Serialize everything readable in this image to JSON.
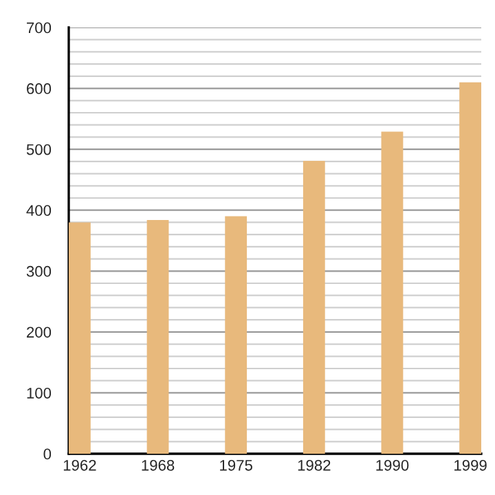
{
  "chart_data": {
    "type": "bar",
    "categories": [
      "1962",
      "1968",
      "1975",
      "1982",
      "1990",
      "1999"
    ],
    "series": [
      {
        "color": "#e8b97c",
        "values": [
          380,
          384,
          390,
          481,
          529,
          610
        ]
      }
    ],
    "ylim": [
      0,
      700
    ],
    "yticks": [
      0,
      {
        "value": 20,
        "label": null
      },
      {
        "value": 40,
        "label": null
      },
      {
        "value": 60,
        "label": null
      },
      {
        "value": 80,
        "label": null
      },
      100,
      {
        "value": 120,
        "label": null
      },
      {
        "value": 140,
        "label": null
      },
      {
        "value": 160,
        "label": null
      },
      {
        "value": 180,
        "label": null
      },
      200,
      {
        "value": 220,
        "label": null
      },
      {
        "value": 240,
        "label": null
      },
      {
        "value": 260,
        "label": null
      },
      {
        "value": 280,
        "label": null
      },
      300,
      {
        "value": 320,
        "label": null
      },
      {
        "value": 340,
        "label": null
      },
      {
        "value": 360,
        "label": null
      },
      {
        "value": 380,
        "label": null
      },
      400,
      {
        "value": 420,
        "label": null
      },
      {
        "value": 440,
        "label": null
      },
      {
        "value": 460,
        "label": null
      },
      {
        "value": 480,
        "label": null
      },
      500,
      {
        "value": 520,
        "label": null
      },
      {
        "value": 540,
        "label": null
      },
      {
        "value": 560,
        "label": null
      },
      {
        "value": 580,
        "label": null
      },
      600,
      {
        "value": 620,
        "label": null
      },
      {
        "value": 640,
        "label": null
      },
      {
        "value": 660,
        "label": null
      },
      {
        "value": 680,
        "label": null
      },
      700
    ],
    "grid": "y"
  }
}
